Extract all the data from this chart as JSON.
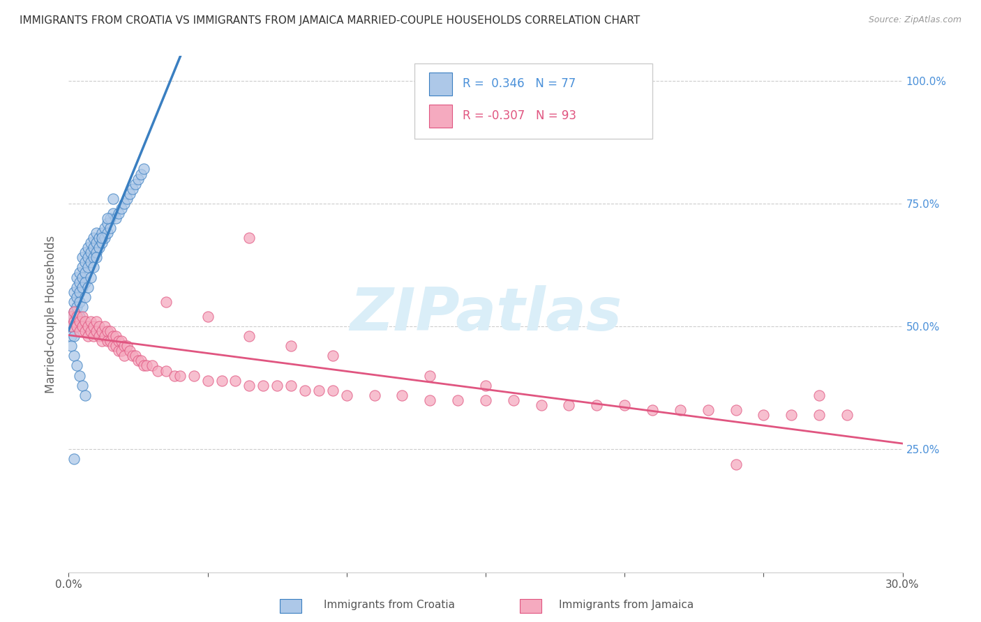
{
  "title": "IMMIGRANTS FROM CROATIA VS IMMIGRANTS FROM JAMAICA MARRIED-COUPLE HOUSEHOLDS CORRELATION CHART",
  "source": "Source: ZipAtlas.com",
  "ylabel": "Married-couple Households",
  "x_range": [
    0.0,
    0.3
  ],
  "y_range": [
    0.0,
    1.05
  ],
  "croatia_R": 0.346,
  "croatia_N": 77,
  "jamaica_R": -0.307,
  "jamaica_N": 93,
  "croatia_color": "#adc8e8",
  "jamaica_color": "#f5aabf",
  "croatia_line_color": "#3a7fc1",
  "jamaica_line_color": "#e05580",
  "legend_color_blue": "#adc8e8",
  "legend_color_pink": "#f5aabf",
  "watermark_text": "ZIPatlas",
  "watermark_color": "#daeef8",
  "croatia_x": [
    0.001,
    0.001,
    0.001,
    0.002,
    0.002,
    0.002,
    0.002,
    0.003,
    0.003,
    0.003,
    0.003,
    0.003,
    0.004,
    0.004,
    0.004,
    0.004,
    0.005,
    0.005,
    0.005,
    0.005,
    0.006,
    0.006,
    0.006,
    0.006,
    0.007,
    0.007,
    0.007,
    0.008,
    0.008,
    0.008,
    0.009,
    0.009,
    0.009,
    0.01,
    0.01,
    0.01,
    0.011,
    0.011,
    0.012,
    0.012,
    0.013,
    0.013,
    0.014,
    0.014,
    0.015,
    0.015,
    0.016,
    0.017,
    0.018,
    0.019,
    0.02,
    0.021,
    0.022,
    0.023,
    0.024,
    0.025,
    0.026,
    0.027,
    0.002,
    0.003,
    0.004,
    0.005,
    0.006,
    0.007,
    0.008,
    0.009,
    0.01,
    0.012,
    0.014,
    0.016,
    0.001,
    0.002,
    0.003,
    0.004,
    0.005,
    0.006,
    0.002
  ],
  "croatia_y": [
    0.5,
    0.52,
    0.48,
    0.55,
    0.53,
    0.51,
    0.57,
    0.56,
    0.58,
    0.54,
    0.6,
    0.52,
    0.59,
    0.61,
    0.57,
    0.55,
    0.62,
    0.6,
    0.58,
    0.64,
    0.63,
    0.61,
    0.65,
    0.59,
    0.64,
    0.62,
    0.66,
    0.65,
    0.63,
    0.67,
    0.66,
    0.64,
    0.68,
    0.67,
    0.65,
    0.69,
    0.68,
    0.66,
    0.69,
    0.67,
    0.7,
    0.68,
    0.71,
    0.69,
    0.72,
    0.7,
    0.73,
    0.72,
    0.73,
    0.74,
    0.75,
    0.76,
    0.77,
    0.78,
    0.79,
    0.8,
    0.81,
    0.82,
    0.48,
    0.5,
    0.52,
    0.54,
    0.56,
    0.58,
    0.6,
    0.62,
    0.64,
    0.68,
    0.72,
    0.76,
    0.46,
    0.44,
    0.42,
    0.4,
    0.38,
    0.36,
    0.23
  ],
  "jamaica_x": [
    0.001,
    0.001,
    0.002,
    0.002,
    0.003,
    0.003,
    0.004,
    0.004,
    0.005,
    0.005,
    0.006,
    0.006,
    0.007,
    0.007,
    0.008,
    0.008,
    0.009,
    0.009,
    0.01,
    0.01,
    0.011,
    0.011,
    0.012,
    0.012,
    0.013,
    0.013,
    0.014,
    0.014,
    0.015,
    0.015,
    0.016,
    0.016,
    0.017,
    0.017,
    0.018,
    0.018,
    0.019,
    0.019,
    0.02,
    0.02,
    0.021,
    0.022,
    0.023,
    0.024,
    0.025,
    0.026,
    0.027,
    0.028,
    0.03,
    0.032,
    0.035,
    0.038,
    0.04,
    0.045,
    0.05,
    0.055,
    0.06,
    0.065,
    0.07,
    0.075,
    0.08,
    0.085,
    0.09,
    0.095,
    0.1,
    0.11,
    0.12,
    0.13,
    0.14,
    0.15,
    0.16,
    0.17,
    0.18,
    0.19,
    0.2,
    0.21,
    0.22,
    0.23,
    0.24,
    0.25,
    0.26,
    0.27,
    0.28,
    0.035,
    0.05,
    0.065,
    0.08,
    0.095,
    0.13,
    0.15,
    0.065,
    0.24,
    0.27
  ],
  "jamaica_y": [
    0.52,
    0.5,
    0.53,
    0.51,
    0.52,
    0.5,
    0.51,
    0.49,
    0.52,
    0.5,
    0.51,
    0.49,
    0.5,
    0.48,
    0.51,
    0.49,
    0.5,
    0.48,
    0.51,
    0.49,
    0.5,
    0.48,
    0.49,
    0.47,
    0.5,
    0.48,
    0.49,
    0.47,
    0.49,
    0.47,
    0.48,
    0.46,
    0.48,
    0.46,
    0.47,
    0.45,
    0.47,
    0.45,
    0.46,
    0.44,
    0.46,
    0.45,
    0.44,
    0.44,
    0.43,
    0.43,
    0.42,
    0.42,
    0.42,
    0.41,
    0.41,
    0.4,
    0.4,
    0.4,
    0.39,
    0.39,
    0.39,
    0.38,
    0.38,
    0.38,
    0.38,
    0.37,
    0.37,
    0.37,
    0.36,
    0.36,
    0.36,
    0.35,
    0.35,
    0.35,
    0.35,
    0.34,
    0.34,
    0.34,
    0.34,
    0.33,
    0.33,
    0.33,
    0.33,
    0.32,
    0.32,
    0.32,
    0.32,
    0.55,
    0.52,
    0.48,
    0.46,
    0.44,
    0.4,
    0.38,
    0.68,
    0.22,
    0.36
  ]
}
